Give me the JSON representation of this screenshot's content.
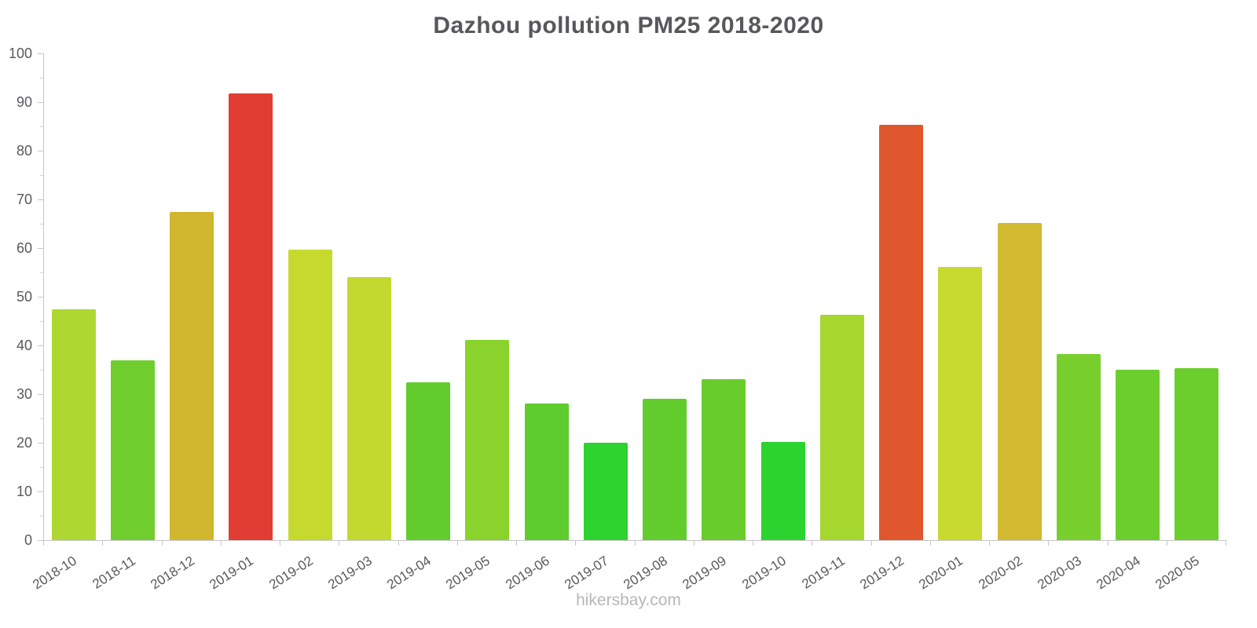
{
  "chart_data": {
    "type": "bar",
    "title": "Dazhou pollution PM25 2018-2020",
    "categories": [
      "2018-10",
      "2018-11",
      "2018-12",
      "2019-01",
      "2019-02",
      "2019-03",
      "2019-04",
      "2019-05",
      "2019-06",
      "2019-07",
      "2019-08",
      "2019-09",
      "2019-10",
      "2019-11",
      "2019-12",
      "2020-01",
      "2020-02",
      "2020-03",
      "2020-04",
      "2020-05"
    ],
    "values": [
      47.5,
      37.0,
      67.5,
      91.8,
      59.7,
      54.0,
      32.5,
      41.2,
      28.0,
      20.0,
      29.0,
      33.1,
      20.1,
      46.3,
      85.4,
      56.2,
      65.2,
      38.3,
      35.0,
      35.4
    ],
    "colors": [
      "#aed831",
      "#6fce2e",
      "#d1b62f",
      "#e23d32",
      "#c6d92f",
      "#c4d930",
      "#63cc2d",
      "#8ad32c",
      "#5ecb2e",
      "#2ed32f",
      "#62cc2c",
      "#68cd2c",
      "#2bd32f",
      "#a5d72e",
      "#e0572d",
      "#c8d930",
      "#d2b92f",
      "#78cf2d",
      "#6bce2d",
      "#6cce2d"
    ],
    "xlabel": "",
    "ylabel": "",
    "ylim": [
      0,
      100
    ],
    "y_tick_step": 10,
    "y_minor_tick_step": 5,
    "grid": "off",
    "legend": "none"
  },
  "footer": {
    "text": "hikersbay.com"
  }
}
